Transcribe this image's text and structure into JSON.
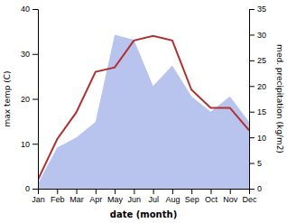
{
  "chart_data": {
    "type": "line",
    "categories": [
      "Jan",
      "Feb",
      "Mar",
      "Apr",
      "May",
      "Jun",
      "Jul",
      "Aug",
      "Sep",
      "Oct",
      "Nov",
      "Dec"
    ],
    "xlabel": "date (month)",
    "ylabel": "max temp (C)",
    "y2label": "med. precipitation (kg/m2)",
    "ylim": [
      0,
      40
    ],
    "yticks": [
      0,
      10,
      20,
      30,
      40
    ],
    "y2lim": [
      0,
      35
    ],
    "y2ticks": [
      0,
      5,
      10,
      15,
      20,
      25,
      30,
      35
    ],
    "grid": false,
    "series": [
      {
        "type": "area",
        "axis": "y2",
        "color": "#b8c4ee",
        "values": [
          1,
          8,
          10,
          13,
          30,
          29,
          20,
          24,
          18,
          15,
          18,
          13
        ]
      },
      {
        "type": "line",
        "color": "#b03030",
        "values": [
          2,
          11,
          17,
          26,
          27,
          33,
          34,
          33,
          22,
          18,
          18,
          13
        ]
      }
    ]
  }
}
